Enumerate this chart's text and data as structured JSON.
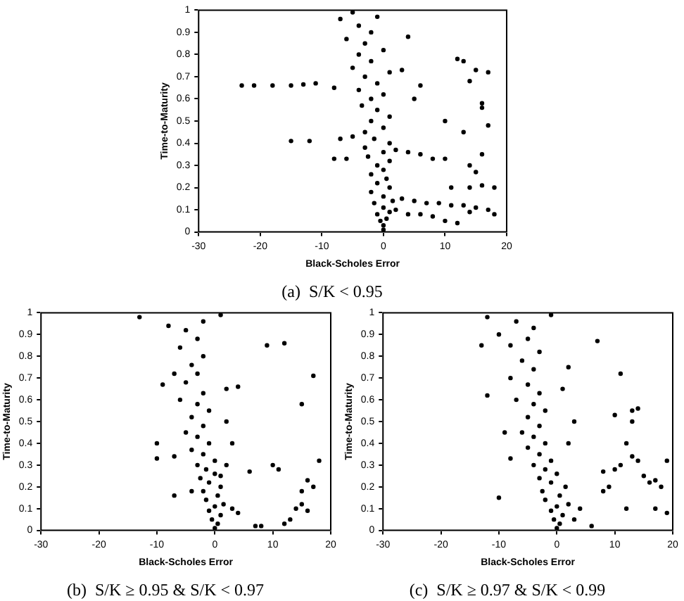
{
  "chart_data": [
    {
      "type": "scatter",
      "title": "(a)  S/K < 0.95",
      "xlabel": "Black-Scholes Error",
      "ylabel": "Time-to-Maturity",
      "xlim": [
        -30,
        20
      ],
      "xticks": [
        -30,
        -20,
        -10,
        0,
        10,
        20
      ],
      "ylim": [
        0,
        1
      ],
      "yticks": [
        0,
        0.1,
        0.2,
        0.3,
        0.4,
        0.5,
        0.6,
        0.7,
        0.8,
        0.9,
        1
      ],
      "grid": false,
      "legend": false,
      "marker": "circle",
      "color": "#000000",
      "x": [
        0,
        0,
        -0.5,
        0.5,
        -1,
        1,
        0,
        -1.5,
        1.5,
        0,
        -2,
        1,
        -1,
        0.5,
        -2,
        0,
        -1,
        1,
        -2.5,
        0,
        -3,
        1,
        -1.5,
        -3,
        0,
        -2,
        1,
        -1,
        -3.5,
        -2,
        0,
        -4,
        -1,
        -3,
        1,
        -5,
        -2,
        -4,
        0,
        -3,
        -6,
        -2,
        -4,
        -7,
        -5,
        -1,
        -23,
        -21,
        -18,
        -15,
        -13,
        -11,
        -8,
        -15,
        -12,
        -7,
        -5,
        2,
        4,
        6,
        8,
        10,
        -8,
        -6,
        3,
        5,
        7,
        9,
        11,
        13,
        15,
        17,
        18,
        2,
        4,
        6,
        8,
        10,
        12,
        14,
        11,
        14,
        16,
        18,
        14,
        15,
        16,
        10,
        13,
        17,
        16,
        16,
        14,
        15,
        17,
        13,
        12,
        5,
        3,
        4,
        6
      ],
      "values": [
        0.01,
        0.03,
        0.05,
        0.06,
        0.08,
        0.09,
        0.11,
        0.13,
        0.14,
        0.16,
        0.18,
        0.2,
        0.22,
        0.24,
        0.26,
        0.28,
        0.3,
        0.32,
        0.34,
        0.36,
        0.38,
        0.4,
        0.42,
        0.45,
        0.47,
        0.5,
        0.52,
        0.55,
        0.57,
        0.6,
        0.62,
        0.64,
        0.67,
        0.7,
        0.72,
        0.74,
        0.77,
        0.8,
        0.82,
        0.85,
        0.87,
        0.9,
        0.93,
        0.96,
        0.99,
        0.97,
        0.66,
        0.66,
        0.66,
        0.66,
        0.665,
        0.67,
        0.65,
        0.41,
        0.41,
        0.42,
        0.43,
        0.37,
        0.36,
        0.35,
        0.33,
        0.33,
        0.33,
        0.33,
        0.15,
        0.14,
        0.13,
        0.13,
        0.12,
        0.12,
        0.11,
        0.1,
        0.08,
        0.1,
        0.08,
        0.08,
        0.07,
        0.05,
        0.04,
        0.09,
        0.2,
        0.2,
        0.21,
        0.2,
        0.3,
        0.27,
        0.35,
        0.5,
        0.45,
        0.48,
        0.56,
        0.58,
        0.68,
        0.73,
        0.72,
        0.77,
        0.78,
        0.6,
        0.73,
        0.88,
        0.66
      ]
    },
    {
      "type": "scatter",
      "title": "(b)  S/K ≥ 0.95 & S/K < 0.97",
      "xlabel": "Black-Scholes Error",
      "ylabel": "Time-to-Maturity",
      "xlim": [
        -30,
        20
      ],
      "xticks": [
        -30,
        -20,
        -10,
        0,
        10,
        20
      ],
      "ylim": [
        0,
        1
      ],
      "yticks": [
        0,
        0.1,
        0.2,
        0.3,
        0.4,
        0.5,
        0.6,
        0.7,
        0.8,
        0.9,
        1
      ],
      "grid": false,
      "legend": false,
      "marker": "circle",
      "color": "#000000",
      "x": [
        0,
        0.5,
        -0.5,
        1,
        -1,
        0,
        1.5,
        -1.5,
        0.5,
        -2,
        1,
        -1,
        -2.5,
        0,
        -1.5,
        -3,
        0,
        -2,
        -4,
        -1,
        -3,
        -5,
        -2,
        -4,
        -1,
        -3,
        -6,
        -2,
        2,
        -5,
        -3,
        -7,
        -4,
        -2,
        -6,
        -3,
        -5,
        -8,
        -2,
        -13,
        1,
        3,
        4,
        -4,
        3,
        2,
        4,
        -9,
        -10,
        -10,
        -7,
        -7,
        1,
        2,
        7,
        8,
        12,
        13,
        14,
        15,
        16,
        17,
        16,
        15,
        18,
        10,
        11,
        15,
        17,
        9,
        12,
        6
      ],
      "values": [
        0.01,
        0.03,
        0.05,
        0.07,
        0.09,
        0.11,
        0.12,
        0.14,
        0.16,
        0.18,
        0.2,
        0.22,
        0.24,
        0.26,
        0.28,
        0.3,
        0.32,
        0.35,
        0.37,
        0.4,
        0.43,
        0.45,
        0.48,
        0.52,
        0.55,
        0.58,
        0.6,
        0.63,
        0.65,
        0.68,
        0.72,
        0.72,
        0.76,
        0.8,
        0.84,
        0.88,
        0.92,
        0.94,
        0.96,
        0.98,
        0.99,
        0.1,
        0.08,
        0.18,
        0.4,
        0.5,
        0.66,
        0.67,
        0.4,
        0.33,
        0.34,
        0.16,
        0.25,
        0.3,
        0.02,
        0.02,
        0.03,
        0.05,
        0.1,
        0.12,
        0.09,
        0.2,
        0.23,
        0.18,
        0.32,
        0.3,
        0.28,
        0.58,
        0.71,
        0.85,
        0.86,
        0.27
      ]
    },
    {
      "type": "scatter",
      "title": "(c)  S/K ≥ 0.97 & S/K < 0.99",
      "xlabel": "Black-Scholes Error",
      "ylabel": "Time-to-Maturity",
      "xlim": [
        -30,
        20
      ],
      "xticks": [
        -30,
        -20,
        -10,
        0,
        10,
        20
      ],
      "ylim": [
        0,
        1
      ],
      "yticks": [
        0,
        0.1,
        0.2,
        0.3,
        0.4,
        0.5,
        0.6,
        0.7,
        0.8,
        0.9,
        1
      ],
      "grid": false,
      "legend": false,
      "marker": "circle",
      "color": "#000000",
      "x": [
        0,
        0.5,
        -0.5,
        1,
        -1,
        0,
        2,
        -2,
        0.5,
        -2.5,
        1.5,
        -1,
        -3,
        0,
        -2,
        -4,
        -1,
        -3,
        -5,
        -2,
        -4,
        -6,
        -3,
        -5,
        -2,
        -4,
        -7,
        -3,
        -5,
        -8,
        -4,
        -6,
        -3,
        -8,
        -5,
        -10,
        -4,
        -7,
        -12,
        -1,
        -13,
        -12,
        -9,
        -8,
        -10,
        2,
        3,
        1,
        2,
        4,
        3,
        6,
        7,
        11,
        10,
        13,
        14,
        13,
        12,
        13,
        11,
        10,
        8,
        15,
        16,
        17,
        18,
        14,
        19,
        12,
        17,
        19,
        9,
        8
      ],
      "values": [
        0.01,
        0.03,
        0.05,
        0.07,
        0.09,
        0.11,
        0.12,
        0.14,
        0.16,
        0.18,
        0.2,
        0.22,
        0.24,
        0.26,
        0.28,
        0.3,
        0.32,
        0.35,
        0.38,
        0.4,
        0.43,
        0.45,
        0.48,
        0.52,
        0.55,
        0.58,
        0.6,
        0.63,
        0.67,
        0.7,
        0.74,
        0.78,
        0.82,
        0.85,
        0.88,
        0.9,
        0.93,
        0.96,
        0.98,
        0.99,
        0.85,
        0.62,
        0.45,
        0.33,
        0.15,
        0.4,
        0.5,
        0.65,
        0.75,
        0.1,
        0.05,
        0.02,
        0.87,
        0.72,
        0.53,
        0.55,
        0.56,
        0.5,
        0.4,
        0.34,
        0.3,
        0.28,
        0.27,
        0.25,
        0.22,
        0.23,
        0.2,
        0.32,
        0.32,
        0.1,
        0.1,
        0.08,
        0.2,
        0.18
      ]
    }
  ]
}
